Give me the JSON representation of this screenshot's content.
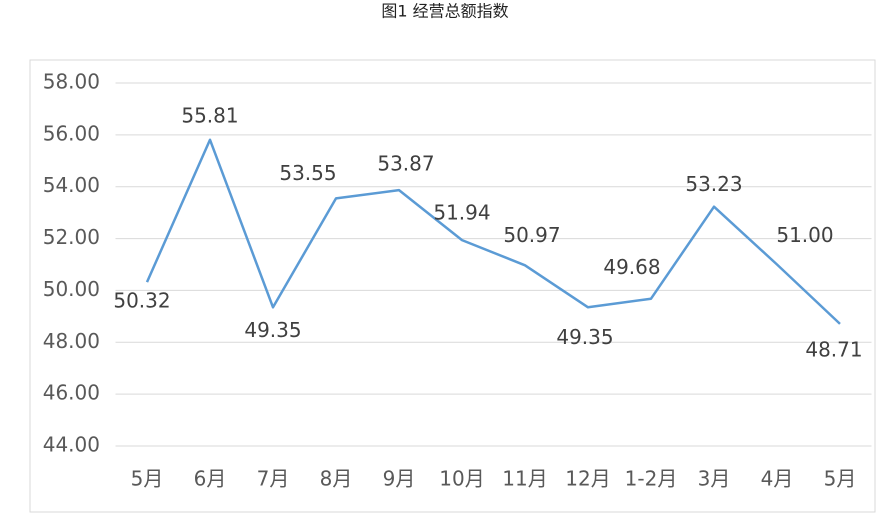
{
  "chart_data": {
    "type": "line",
    "title": "图1 经营总额指数",
    "categories": [
      "5月",
      "6月",
      "7月",
      "8月",
      "9月",
      "10月",
      "11月",
      "12月",
      "1-2月",
      "3月",
      "4月",
      "5月"
    ],
    "series": [
      {
        "name": "经营总额指数",
        "color": "#5b9bd5",
        "values": [
          50.32,
          55.81,
          49.35,
          53.55,
          53.87,
          51.94,
          50.97,
          49.35,
          49.68,
          53.23,
          51.0,
          48.71
        ],
        "value_labels": [
          "50.32",
          "55.81",
          "49.35",
          "53.55",
          "53.87",
          "51.94",
          "50.97",
          "49.35",
          "49.68",
          "53.23",
          "51.00",
          "48.71"
        ]
      }
    ],
    "ylim": [
      44,
      58
    ],
    "yticks": [
      {
        "value": 44,
        "label": "44.00"
      },
      {
        "value": 46,
        "label": "46.00"
      },
      {
        "value": 48,
        "label": "48.00"
      },
      {
        "value": 50,
        "label": "50.00"
      },
      {
        "value": 52,
        "label": "52.00"
      },
      {
        "value": 54,
        "label": "54.00"
      },
      {
        "value": 56,
        "label": "56.00"
      },
      {
        "value": 58,
        "label": "58.00"
      }
    ],
    "grid": true
  }
}
